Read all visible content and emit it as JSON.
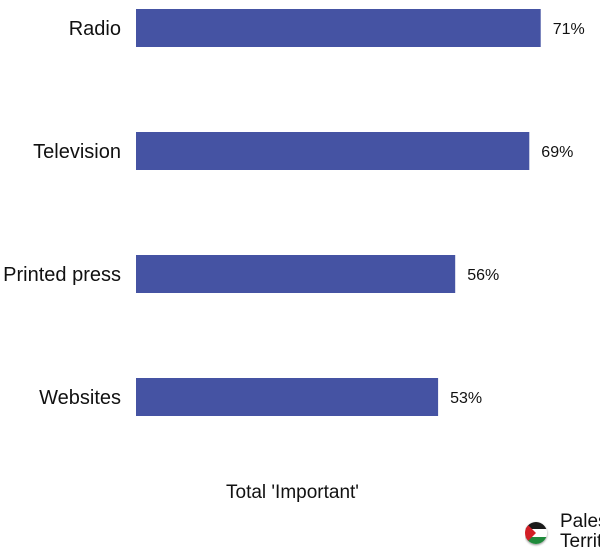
{
  "chart_data": {
    "type": "bar",
    "orientation": "horizontal",
    "categories": [
      "Radio",
      "Television",
      "Printed press",
      "Websites"
    ],
    "values": [
      71,
      69,
      56,
      53
    ],
    "value_labels": [
      "71%",
      "69%",
      "56%",
      "53%"
    ],
    "xlabel": "Total 'Important'",
    "ylabel": "",
    "xlim": [
      0,
      100
    ],
    "grid": false,
    "legend": {
      "placement": "bottom-right",
      "line1": "Palestinian",
      "line2": "Territories",
      "icon": "palestine-flag-icon"
    },
    "bar_color": "#4553a3"
  }
}
